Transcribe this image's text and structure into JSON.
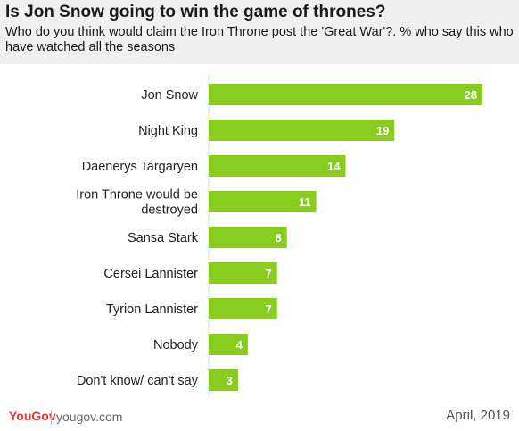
{
  "header": {
    "title": "Is Jon Snow going to win the game of thrones?",
    "subtitle": "Who do you think would claim the Iron Throne post the 'Great War'?. % who say this who have watched all the seasons"
  },
  "footer": {
    "logo": "YouGov",
    "url": "yougov.com",
    "date": "April, 2019"
  },
  "colors": {
    "bar": "#88cc1f",
    "logo": "#e3352f"
  },
  "chart_data": {
    "type": "bar",
    "orientation": "horizontal",
    "categories": [
      [
        "Jon Snow"
      ],
      [
        "Night King"
      ],
      [
        "Daenerys Targaryen"
      ],
      [
        "Iron Throne would be",
        "destroyed"
      ],
      [
        "Sansa Stark"
      ],
      [
        "Cersei Lannister"
      ],
      [
        "Tyrion Lannister"
      ],
      [
        "Nobody"
      ],
      [
        "Don't know/ can't say"
      ]
    ],
    "values": [
      28,
      19,
      14,
      11,
      8,
      7,
      7,
      4,
      3
    ],
    "title": "",
    "xlabel": "",
    "ylabel": "",
    "xlim": [
      0,
      28
    ],
    "grid": false,
    "legend": "none"
  }
}
